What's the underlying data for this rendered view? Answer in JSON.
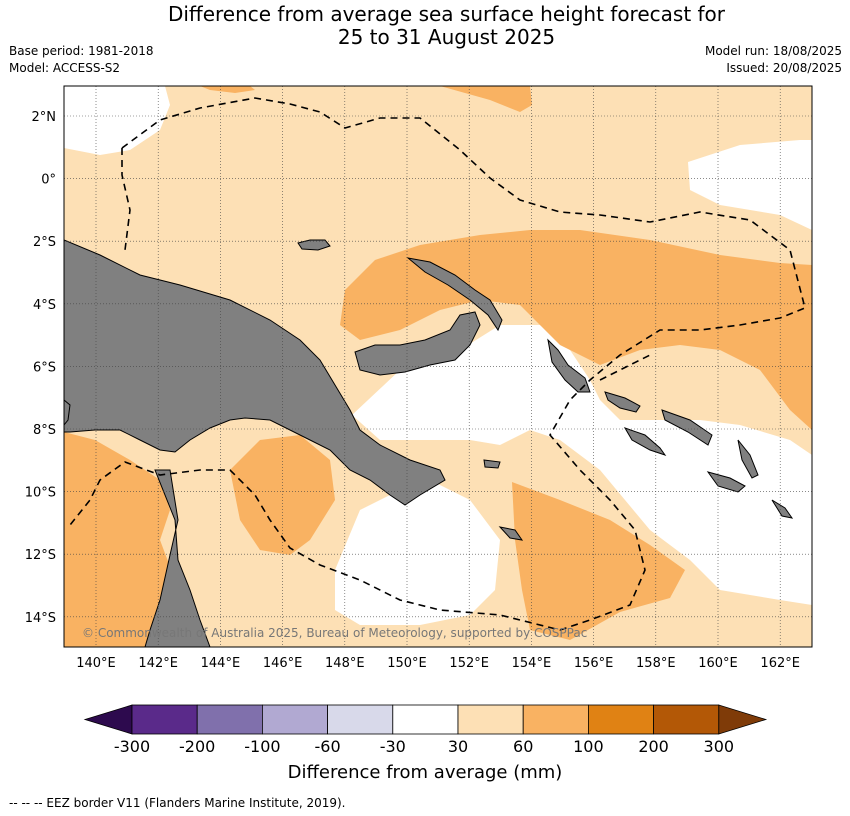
{
  "title_line1": "Difference from average sea surface height forecast for",
  "title_line2": "25 to 31 August 2025",
  "meta_left": {
    "base_period": "Base period: 1981-2018",
    "model": "Model: ACCESS-S2"
  },
  "meta_right": {
    "model_run": "Model run: 18/08/2025",
    "issued": "Issued: 20/08/2025"
  },
  "lat_labels": [
    "2°N",
    "0°",
    "2°S",
    "4°S",
    "6°S",
    "8°S",
    "10°S",
    "12°S",
    "14°S"
  ],
  "lon_labels": [
    "140°E",
    "142°E",
    "144°E",
    "146°E",
    "148°E",
    "150°E",
    "152°E",
    "154°E",
    "156°E",
    "158°E",
    "160°E",
    "162°E"
  ],
  "copyright": "© Commonwealth of Australia 2025, Bureau of Meteorology, supported by COSPPac",
  "colorbar": {
    "title": "Difference from average (mm)",
    "tick_labels": [
      "-300",
      "-200",
      "-100",
      "-60",
      "-30",
      "30",
      "60",
      "100",
      "200",
      "300"
    ],
    "colors": [
      "#2d0a4e",
      "#5a2a8a",
      "#8070ac",
      "#b1a9d2",
      "#d8d9ea",
      "#ffffff",
      "#fde0b5",
      "#f9b262",
      "#e08214",
      "#b35806",
      "#7f3b08"
    ]
  },
  "legend_note": "--  --  -- EEZ border V11 (Flanders Marine Institute, 2019).",
  "colors": {
    "land": "#808080",
    "band_30_60": "#fde0b5",
    "band_60_100": "#f9b262",
    "near_zero": "#ffffff"
  }
}
